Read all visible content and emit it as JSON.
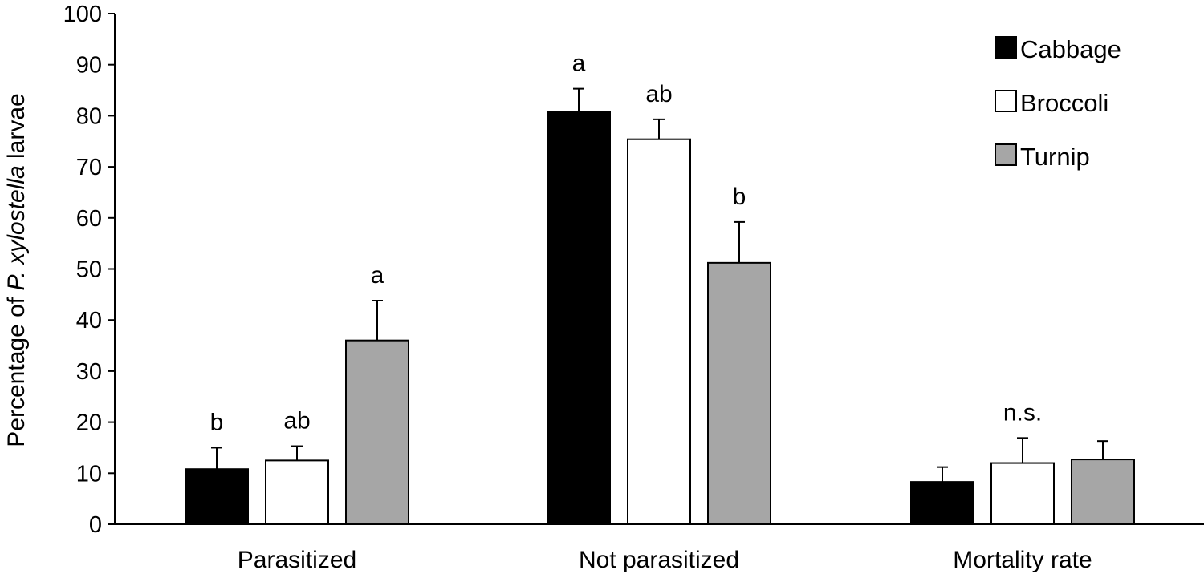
{
  "chart_data": {
    "type": "bar",
    "title": "",
    "xlabel": "",
    "ylabel": {
      "prefix": "Percentage of ",
      "italic": "P. xylostella",
      "suffix": " larvae"
    },
    "ylim": [
      0,
      100
    ],
    "yticks": [
      "0",
      "10",
      "20",
      "30",
      "40",
      "50",
      "60",
      "70",
      "80",
      "90",
      "100"
    ],
    "grid": false,
    "legend_position": "top-right",
    "categories": [
      "Parasitized",
      "Not parasitized",
      "Mortality rate"
    ],
    "series": [
      {
        "name": "Cabbage",
        "color": "#000000",
        "values": [
          10.8,
          80.8,
          8.3
        ],
        "errors": [
          4.2,
          4.5,
          2.9
        ]
      },
      {
        "name": "Broccoli",
        "color": "#ffffff",
        "values": [
          12.5,
          75.4,
          12.0
        ],
        "errors": [
          2.8,
          3.9,
          4.9
        ]
      },
      {
        "name": "Turnip",
        "color": "#a6a6a6",
        "values": [
          36.0,
          51.2,
          12.7
        ],
        "errors": [
          7.8,
          8.0,
          3.6
        ]
      }
    ],
    "significance": [
      [
        "b",
        "ab",
        "a"
      ],
      [
        "a",
        "ab",
        "b"
      ],
      [
        "",
        "n.s.",
        ""
      ]
    ]
  }
}
